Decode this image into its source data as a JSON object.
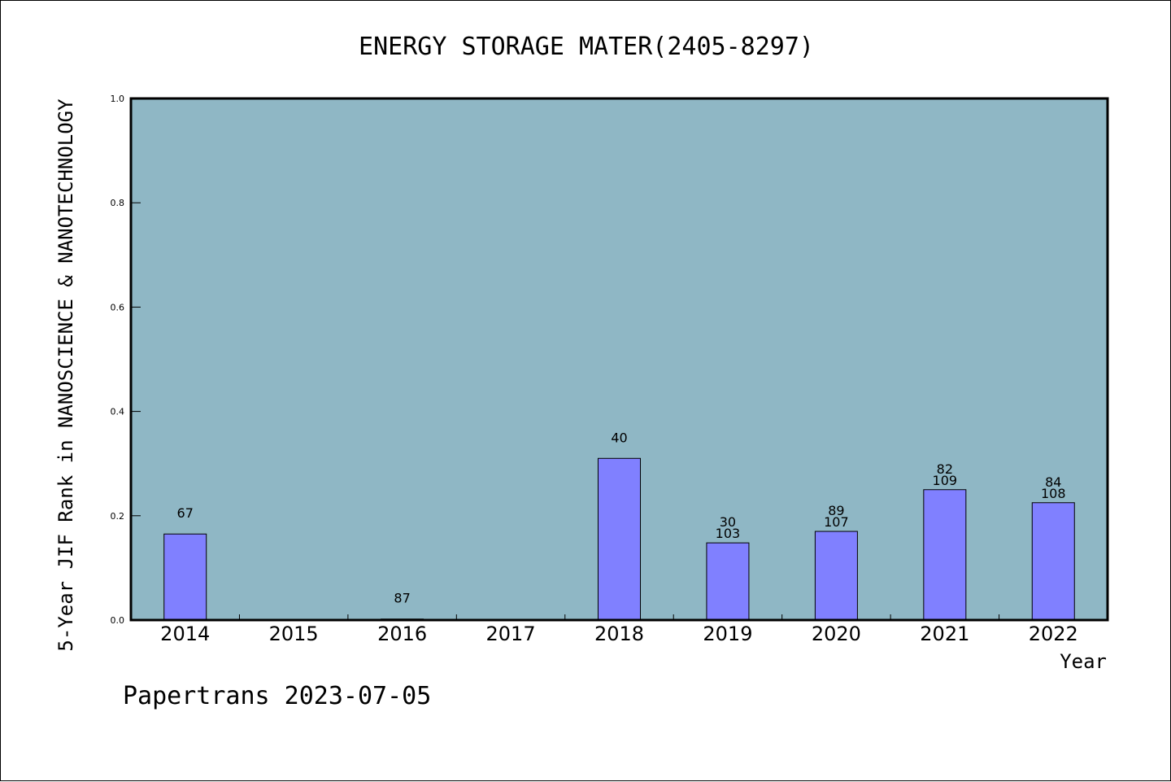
{
  "chart_data": {
    "type": "bar",
    "title": "ENERGY STORAGE MATER(2405-8297)",
    "xlabel": "Year",
    "ylabel": "5-Year JIF Rank in NANOSCIENCE & NANOTECHNOLOGY",
    "ylim": [
      0,
      1.0
    ],
    "yticks": [
      "0.0",
      "0.2",
      "0.4",
      "0.6",
      "0.8",
      "1.0"
    ],
    "grid": false,
    "categories": [
      "2014",
      "2015",
      "2016",
      "2017",
      "2018",
      "2019",
      "2020",
      "2021",
      "2022"
    ],
    "values": [
      0.165,
      null,
      0.002,
      null,
      0.31,
      0.148,
      0.17,
      0.25,
      0.225
    ],
    "bar_labels": [
      [
        "67"
      ],
      [],
      [
        "87"
      ],
      [],
      [
        "40"
      ],
      [
        "30",
        "103"
      ],
      [
        "89",
        "107"
      ],
      [
        "82",
        "109"
      ],
      [
        "84",
        "108"
      ]
    ],
    "colors": {
      "plot_background": "#8fb7c5",
      "bar_fill": "#8080ff",
      "bar_stroke": "#000000"
    }
  },
  "footer": {
    "watermark": "Papertrans 2023-07-05"
  }
}
